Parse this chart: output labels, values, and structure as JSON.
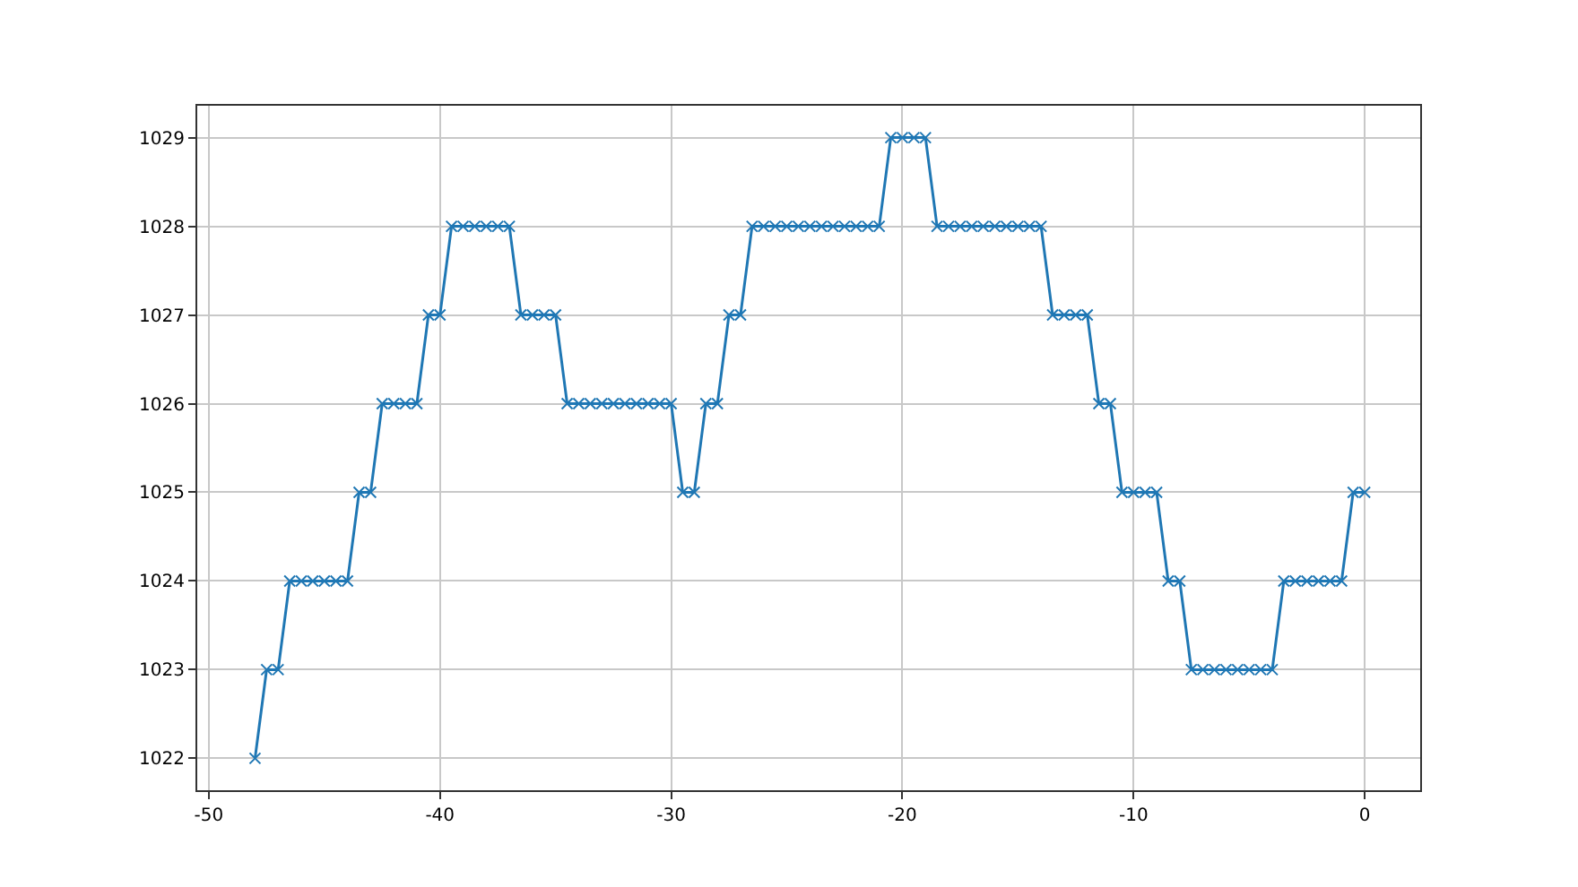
{
  "chart_data": {
    "type": "line",
    "x": [
      -48,
      -47.5,
      -47,
      -46.5,
      -46,
      -45.5,
      -45,
      -44.5,
      -44,
      -43.5,
      -43,
      -42.5,
      -42,
      -41.5,
      -41,
      -40.5,
      -40,
      -39.5,
      -39,
      -38.5,
      -38,
      -37.5,
      -37,
      -36.5,
      -36,
      -35.5,
      -35,
      -34.5,
      -34,
      -33.5,
      -33,
      -32.5,
      -32,
      -31.5,
      -31,
      -30.5,
      -30,
      -29.5,
      -29,
      -28.5,
      -28,
      -27.5,
      -27,
      -26.5,
      -26,
      -25.5,
      -25,
      -24.5,
      -24,
      -23.5,
      -23,
      -22.5,
      -22,
      -21.5,
      -21,
      -20.5,
      -20,
      -19.5,
      -19,
      -18.5,
      -18,
      -17.5,
      -17,
      -16.5,
      -16,
      -15.5,
      -15,
      -14.5,
      -14,
      -13.5,
      -13,
      -12.5,
      -12,
      -11.5,
      -11,
      -10.5,
      -10,
      -9.5,
      -9,
      -8.5,
      -8,
      -7.5,
      -7,
      -6.5,
      -6,
      -5.5,
      -5,
      -4.5,
      -4,
      -3.5,
      -3,
      -2.5,
      -2,
      -1.5,
      -1,
      -0.5,
      0
    ],
    "series": [
      {
        "color": "#1f77b4",
        "values": [
          1022,
          1023,
          1023,
          1024,
          1024,
          1024,
          1024,
          1024,
          1024,
          1025,
          1025,
          1026,
          1026,
          1026,
          1026,
          1027,
          1027,
          1028,
          1028,
          1028,
          1028,
          1028,
          1028,
          1027,
          1027,
          1027,
          1027,
          1026,
          1026,
          1026,
          1026,
          1026,
          1026,
          1026,
          1026,
          1026,
          1026,
          1025,
          1025,
          1026,
          1026,
          1027,
          1027,
          1028,
          1028,
          1028,
          1028,
          1028,
          1028,
          1028,
          1028,
          1028,
          1028,
          1028,
          1028,
          1029,
          1029,
          1029,
          1029,
          1028,
          1028,
          1028,
          1028,
          1028,
          1028,
          1028,
          1028,
          1028,
          1028,
          1027,
          1027,
          1027,
          1027,
          1026,
          1026,
          1025,
          1025,
          1025,
          1025,
          1024,
          1024,
          1023,
          1023,
          1023,
          1023,
          1023,
          1023,
          1023,
          1023,
          1024,
          1024,
          1024,
          1024,
          1024,
          1024,
          1025,
          1025
        ]
      }
    ],
    "xlim": [
      -50.5,
      2.4
    ],
    "ylim": [
      1021.64,
      1029.36
    ],
    "xticks": [
      -50,
      -40,
      -30,
      -20,
      -10,
      0
    ],
    "yticks": [
      1022,
      1023,
      1024,
      1025,
      1026,
      1027,
      1028,
      1029
    ],
    "grid": true,
    "marker": "cross",
    "line_style": "solid"
  }
}
